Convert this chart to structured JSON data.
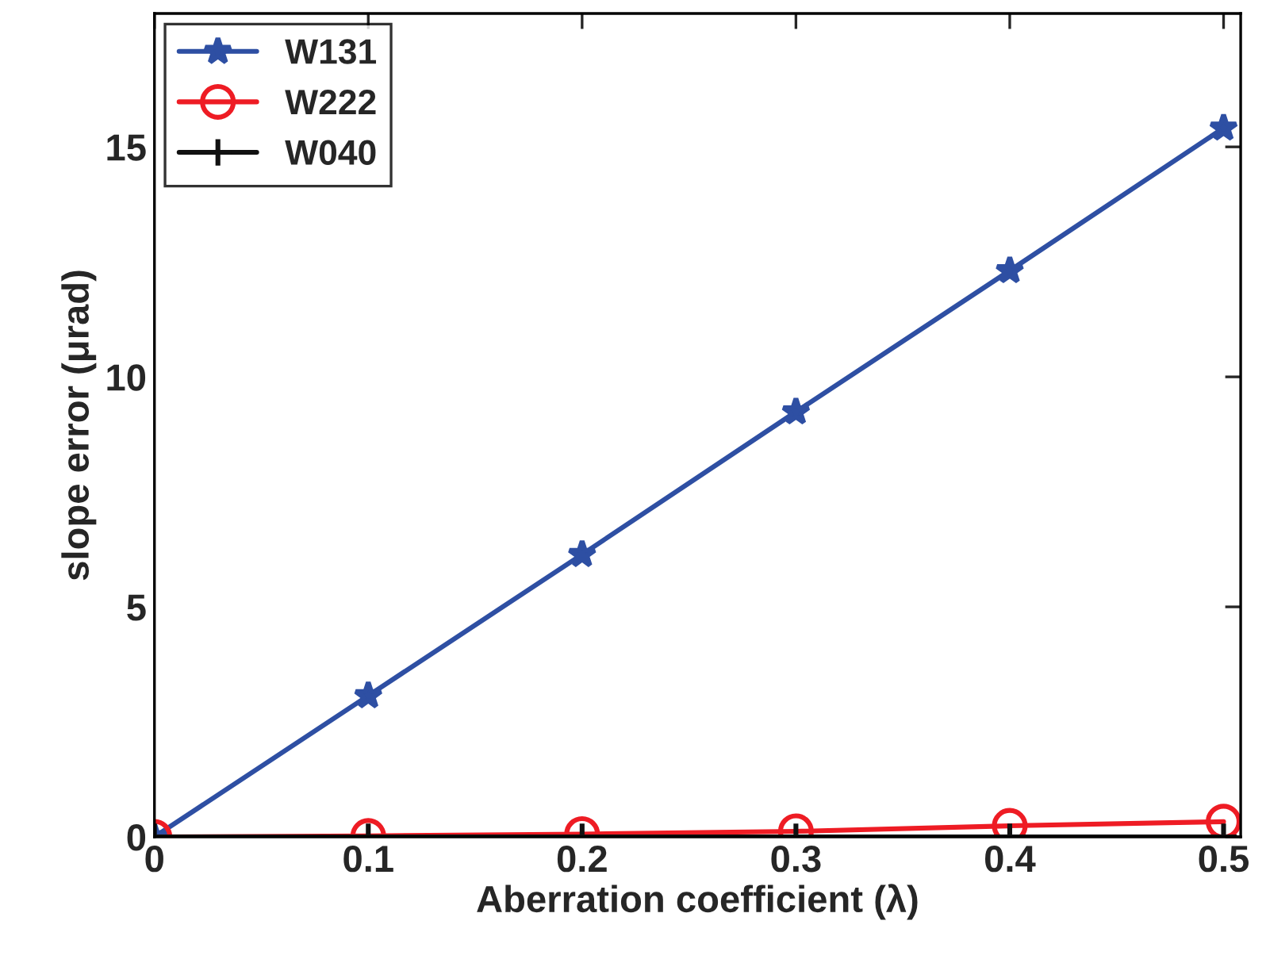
{
  "chart_data": {
    "type": "line",
    "xlabel": "Aberration coefficient (λ)",
    "ylabel": "slope error (μrad)",
    "x": [
      0,
      0.1,
      0.2,
      0.3,
      0.4,
      0.5
    ],
    "series": [
      {
        "name": "W131",
        "color": "#2e4fa3",
        "marker": "star",
        "values": [
          0,
          3.07,
          6.14,
          9.24,
          12.31,
          15.41
        ]
      },
      {
        "name": "W222",
        "color": "#ee1c24",
        "marker": "circle",
        "values": [
          0,
          0.02,
          0.06,
          0.12,
          0.24,
          0.33
        ]
      },
      {
        "name": "W040",
        "color": "#111111",
        "marker": "cross",
        "values": [
          0,
          0,
          0,
          0,
          0,
          0
        ]
      }
    ],
    "xlim": [
      0,
      0.508
    ],
    "ylim": [
      0,
      17.9
    ],
    "xticks": [
      0,
      0.1,
      0.2,
      0.3,
      0.4,
      0.5
    ],
    "yticks": [
      0,
      5,
      10,
      15
    ],
    "grid": false,
    "legend": "top left",
    "line_style": "solid"
  }
}
